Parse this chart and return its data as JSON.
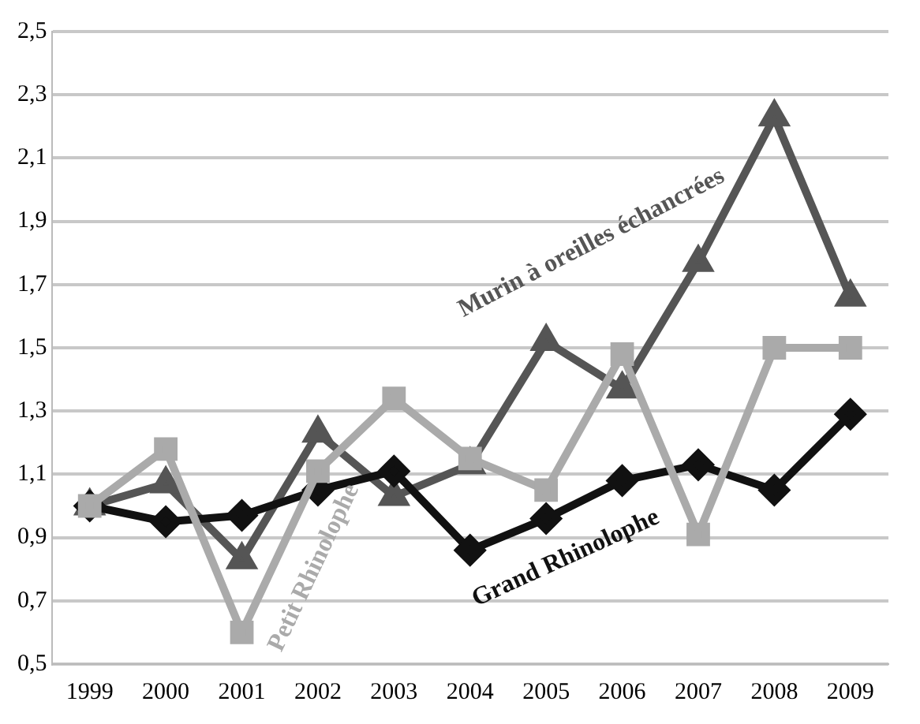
{
  "chart_data": {
    "type": "line",
    "categories": [
      "1999",
      "2000",
      "2001",
      "2002",
      "2003",
      "2004",
      "2005",
      "2006",
      "2007",
      "2008",
      "2009"
    ],
    "series": [
      {
        "name": "Petit Rhinolophe",
        "color": "#aaaaaa",
        "marker": "square",
        "values": [
          1.0,
          1.18,
          0.6,
          1.11,
          1.34,
          1.15,
          1.05,
          1.48,
          0.91,
          1.5,
          1.5
        ]
      },
      {
        "name": "Grand Rhinolophe",
        "color": "#111111",
        "marker": "diamond",
        "values": [
          1.0,
          0.95,
          0.97,
          1.05,
          1.11,
          0.86,
          0.96,
          1.08,
          1.13,
          1.05,
          1.29
        ]
      },
      {
        "name": "Murin à oreilles échancrées",
        "color": "#555555",
        "marker": "triangle",
        "values": [
          1.0,
          1.07,
          0.83,
          1.23,
          1.03,
          1.13,
          1.52,
          1.37,
          1.77,
          2.23,
          1.66
        ]
      }
    ],
    "ylim": [
      0.5,
      2.5
    ],
    "yticks": [
      {
        "value": 0.5,
        "label": "0,5"
      },
      {
        "value": 0.7,
        "label": "0,7"
      },
      {
        "value": 0.9,
        "label": "0,9"
      },
      {
        "value": 1.1,
        "label": "1,1"
      },
      {
        "value": 1.3,
        "label": "1,3"
      },
      {
        "value": 1.5,
        "label": "1,5"
      },
      {
        "value": 1.7,
        "label": "1,7"
      },
      {
        "value": 1.9,
        "label": "1,9"
      },
      {
        "value": 2.1,
        "label": "2,1"
      },
      {
        "value": 2.3,
        "label": "2,3"
      },
      {
        "value": 2.5,
        "label": "2,5"
      }
    ],
    "grid": "y",
    "legend": false
  }
}
